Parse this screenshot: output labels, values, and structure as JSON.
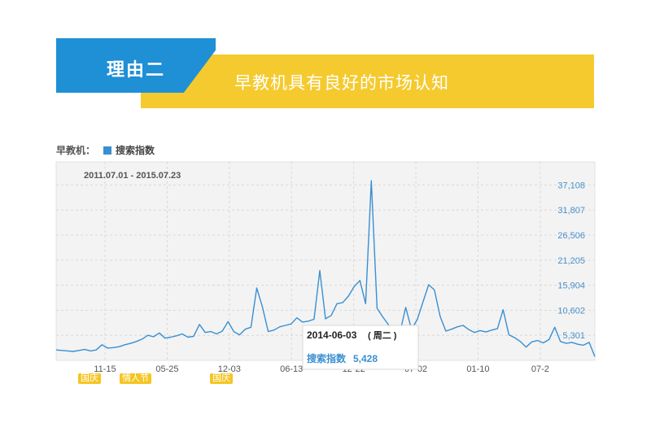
{
  "header": {
    "section_label": "理由二",
    "subtitle": "早教机具有良好的市场认知"
  },
  "legend": {
    "keyword": "早教机：",
    "series_name": "搜索指数"
  },
  "holidays": [
    "国庆",
    "情人节",
    "国庆"
  ],
  "tooltip": {
    "date": "2014-06-03",
    "weekday": "( 周二 )",
    "label": "搜索指数",
    "value": "5,428"
  },
  "colors": {
    "series": "#3a8fd1",
    "axis_label": "#4a90c8",
    "header_blue": "#1f8fd6",
    "header_yellow": "#f5ca2f",
    "holiday_tag": "#f5c522"
  },
  "chart_data": {
    "type": "line",
    "date_range": "2011.07.01 - 2015.07.23",
    "x_tick_labels": [
      "11-15",
      "05-25",
      "12-03",
      "06-13",
      "12-22",
      "07-02",
      "01-10",
      "07-2"
    ],
    "y_tick_labels": [
      "5,301",
      "10,602",
      "15,904",
      "21,205",
      "26,506",
      "31,807",
      "37,108"
    ],
    "y_ticks": [
      5301,
      10602,
      15904,
      21205,
      26506,
      31807,
      37108
    ],
    "ylim": [
      0,
      42000
    ],
    "grid": true,
    "series": [
      {
        "name": "搜索指数",
        "values": [
          2200,
          2100,
          2000,
          1900,
          2100,
          2300,
          2000,
          2200,
          3300,
          2600,
          2700,
          2900,
          3300,
          3600,
          4000,
          4500,
          5300,
          5000,
          5800,
          4700,
          4900,
          5200,
          5600,
          4900,
          5100,
          7600,
          5900,
          6100,
          5600,
          6200,
          8200,
          6100,
          5400,
          6600,
          7000,
          15300,
          11300,
          6100,
          6400,
          7100,
          7400,
          7700,
          9000,
          8100,
          8300,
          8700,
          19000,
          8800,
          9500,
          12000,
          12200,
          13600,
          15600,
          16900,
          12000,
          38000,
          11000,
          9200,
          7500,
          6500,
          6000,
          11200,
          6600,
          8600,
          12300,
          16000,
          14900,
          9300,
          6200,
          6600,
          7100,
          7400,
          6500,
          5900,
          6300,
          6000,
          6400,
          6700,
          10700,
          5400,
          4800,
          4000,
          2800,
          3900,
          4200,
          3700,
          4400,
          7000,
          4000,
          3600,
          3800,
          3400,
          3200,
          3800,
          800
        ]
      }
    ]
  }
}
